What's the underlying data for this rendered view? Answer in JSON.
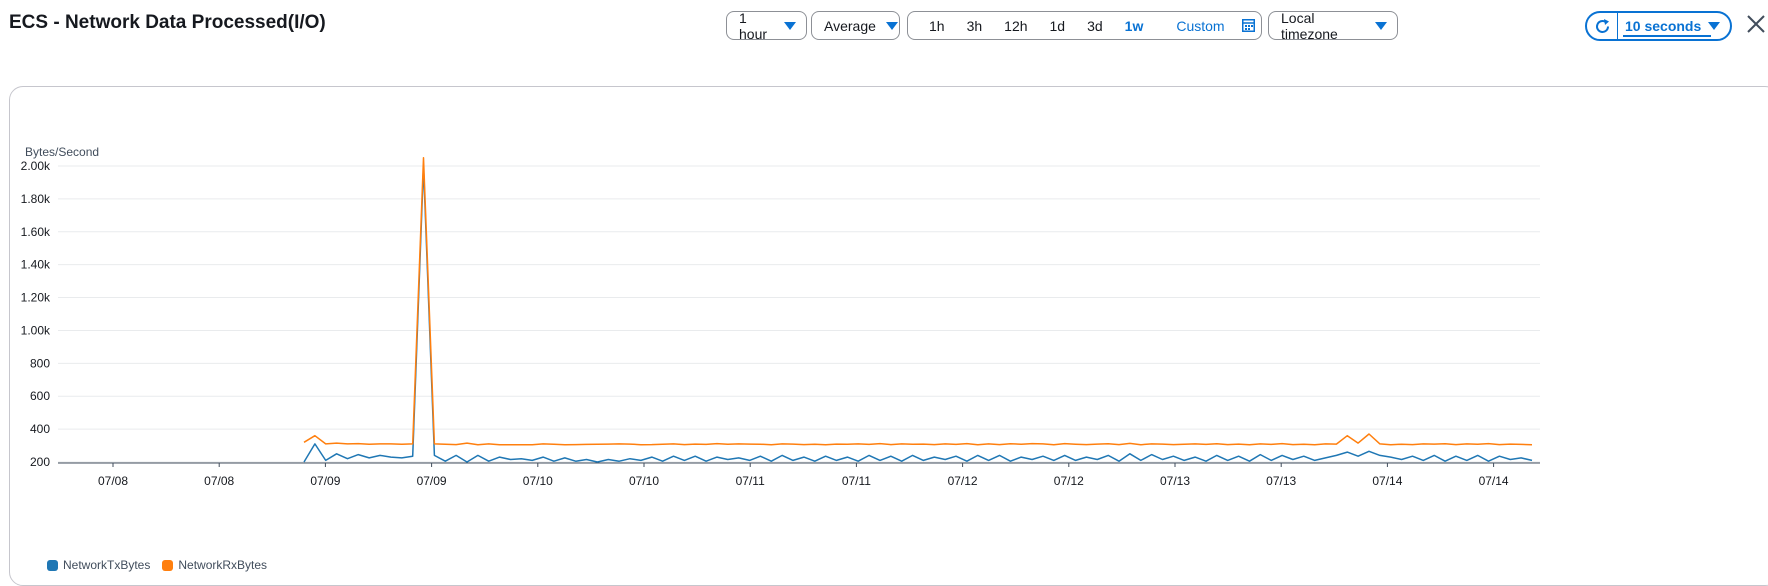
{
  "header": {
    "title": "ECS - Network Data Processed(I/O)",
    "period_select": "1 hour",
    "stat_select": "Average",
    "ranges": [
      "1h",
      "3h",
      "12h",
      "1d",
      "3d",
      "1w"
    ],
    "selected_range": "1w",
    "custom_label": "Custom",
    "timezone_select": "Local timezone",
    "refresh_select": "10 seconds"
  },
  "colors": {
    "accent": "#0972d3",
    "tx_series": "#1f77b4",
    "rx_series": "#ff7f0e"
  },
  "chart_data": {
    "type": "line",
    "ylabel": "Bytes/Second",
    "ylim": [
      200,
      2000
    ],
    "y_ticks": [
      "2.00k",
      "1.80k",
      "1.60k",
      "1.40k",
      "1.20k",
      "1.00k",
      "800",
      "600",
      "400",
      "200"
    ],
    "x_ticks": [
      "07/08",
      "07/08",
      "07/09",
      "07/09",
      "07/10",
      "07/10",
      "07/11",
      "07/11",
      "07/12",
      "07/12",
      "07/13",
      "07/13",
      "07/14",
      "07/14"
    ],
    "grid": true,
    "legend_position": "bottom-left",
    "series": [
      {
        "name": "NetworkTxBytes",
        "values": [
          200,
          310,
          210,
          250,
          220,
          245,
          225,
          240,
          230,
          225,
          235,
          2000,
          240,
          205,
          240,
          200,
          240,
          205,
          230,
          215,
          220,
          210,
          230,
          205,
          225,
          205,
          215,
          200,
          215,
          205,
          220,
          210,
          230,
          205,
          235,
          210,
          235,
          205,
          230,
          215,
          225,
          210,
          235,
          205,
          240,
          210,
          230,
          205,
          235,
          210,
          230,
          205,
          240,
          210,
          235,
          205,
          240,
          210,
          230,
          215,
          235,
          205,
          240,
          210,
          240,
          205,
          230,
          215,
          235,
          210,
          240,
          210,
          230,
          215,
          240,
          205,
          250,
          210,
          245,
          215,
          235,
          210,
          230,
          205,
          240,
          210,
          235,
          205,
          245,
          210,
          240,
          215,
          235,
          210,
          225,
          240,
          260,
          235,
          265,
          240,
          230,
          215,
          235,
          210,
          240,
          205,
          235,
          210,
          240,
          205,
          235,
          215,
          225,
          210
        ],
        "color": "#1f77b4"
      },
      {
        "name": "NetworkRxBytes",
        "values": [
          320,
          360,
          310,
          315,
          310,
          312,
          308,
          310,
          310,
          308,
          310,
          2050,
          310,
          308,
          306,
          315,
          305,
          310,
          305,
          305,
          305,
          305,
          310,
          308,
          305,
          306,
          307,
          308,
          309,
          310,
          309,
          305,
          306,
          308,
          310,
          306,
          309,
          307,
          312,
          308,
          310,
          309,
          308,
          305,
          310,
          309,
          306,
          308,
          305,
          309,
          308,
          310,
          307,
          312,
          306,
          310,
          308,
          309,
          306,
          310,
          307,
          312,
          305,
          310,
          306,
          311,
          308,
          312,
          310,
          305,
          312,
          308,
          306,
          309,
          311,
          306,
          313,
          305,
          310,
          309,
          306,
          308,
          310,
          307,
          311,
          306,
          309,
          305,
          310,
          307,
          312,
          306,
          308,
          305,
          310,
          309,
          360,
          315,
          370,
          310,
          305,
          308,
          306,
          310,
          309,
          311,
          306,
          310,
          308,
          312,
          306,
          309,
          307,
          305
        ],
        "color": "#ff7f0e"
      }
    ]
  }
}
